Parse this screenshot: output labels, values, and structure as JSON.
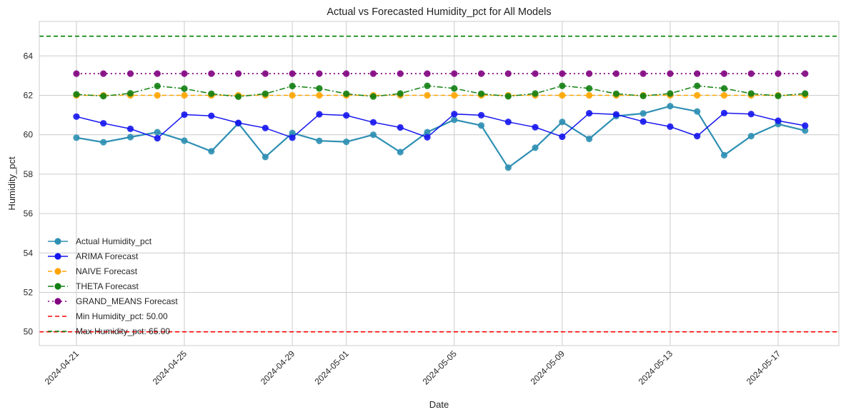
{
  "chart_data": {
    "type": "line",
    "title": "Actual vs Forecasted Humidity_pct for All Models",
    "xlabel": "Date",
    "ylabel": "Humidity_pct",
    "ylim": [
      49.3,
      65.75
    ],
    "xlim": [
      "2024-04-19 15:00",
      "2024-05-19 06:00"
    ],
    "yticks": [
      50,
      52,
      54,
      56,
      58,
      60,
      62,
      64
    ],
    "xticks": [
      "2024-04-21",
      "2024-04-25",
      "2024-04-29",
      "2024-05-01",
      "2024-05-05",
      "2024-05-09",
      "2024-05-13",
      "2024-05-17"
    ],
    "grid": true,
    "legend_position": "lower-left",
    "x": [
      "2024-04-21",
      "2024-04-22",
      "2024-04-23",
      "2024-04-24",
      "2024-04-25",
      "2024-04-26",
      "2024-04-27",
      "2024-04-28",
      "2024-04-29",
      "2024-04-30",
      "2024-05-01",
      "2024-05-02",
      "2024-05-03",
      "2024-05-04",
      "2024-05-05",
      "2024-05-06",
      "2024-05-07",
      "2024-05-08",
      "2024-05-09",
      "2024-05-10",
      "2024-05-11",
      "2024-05-12",
      "2024-05-13",
      "2024-05-14",
      "2024-05-15",
      "2024-05-16",
      "2024-05-17",
      "2024-05-18"
    ],
    "series": [
      {
        "name": "Actual Humidity_pct",
        "color": "#2e8fb3",
        "style": "solid",
        "width": 2.2,
        "values": [
          59.85,
          59.62,
          59.88,
          60.13,
          59.7,
          59.16,
          60.58,
          58.87,
          60.09,
          59.69,
          59.64,
          60.0,
          59.12,
          60.13,
          60.76,
          60.47,
          58.33,
          59.34,
          60.65,
          59.79,
          60.95,
          61.08,
          61.45,
          61.18,
          58.96,
          59.93,
          60.54,
          60.21
        ]
      },
      {
        "name": "ARIMA Forecast",
        "color": "#1515ee",
        "style": "solid",
        "width": 1.5,
        "values": [
          60.92,
          60.58,
          60.3,
          59.82,
          61.02,
          60.96,
          60.6,
          60.34,
          59.85,
          61.04,
          60.98,
          60.63,
          60.37,
          59.87,
          61.05,
          60.99,
          60.65,
          60.38,
          59.9,
          61.09,
          61.03,
          60.67,
          60.41,
          59.93,
          61.1,
          61.05,
          60.71,
          60.46
        ]
      },
      {
        "name": "NAIVE Forecast",
        "color": "#ffa500",
        "style": "dashed",
        "width": 1.5,
        "values": [
          62.0,
          62.0,
          62.0,
          62.0,
          62.0,
          62.0,
          62.0,
          62.0,
          62.0,
          62.0,
          62.0,
          62.0,
          62.0,
          62.0,
          62.0,
          62.0,
          62.0,
          62.0,
          62.0,
          62.0,
          62.0,
          62.0,
          62.0,
          62.0,
          62.0,
          62.0,
          62.0,
          62.0
        ]
      },
      {
        "name": "THETA Forecast",
        "color": "#128012",
        "style": "dashdot",
        "width": 1.5,
        "values": [
          62.05,
          61.96,
          62.1,
          62.47,
          62.34,
          62.08,
          61.93,
          62.08,
          62.47,
          62.35,
          62.08,
          61.94,
          62.09,
          62.48,
          62.35,
          62.08,
          61.95,
          62.09,
          62.48,
          62.35,
          62.08,
          61.97,
          62.09,
          62.48,
          62.35,
          62.09,
          61.97,
          62.09
        ]
      },
      {
        "name": "GRAND_MEANS Forecast",
        "color": "#800080",
        "style": "dotted",
        "width": 1.8,
        "values": [
          63.1,
          63.1,
          63.1,
          63.1,
          63.1,
          63.1,
          63.1,
          63.1,
          63.1,
          63.1,
          63.1,
          63.1,
          63.1,
          63.1,
          63.1,
          63.1,
          63.1,
          63.1,
          63.1,
          63.1,
          63.1,
          63.1,
          63.1,
          63.1,
          63.1,
          63.1,
          63.1,
          63.1
        ]
      }
    ],
    "hlines": [
      {
        "name": "Min Humidity_pct: 50.00",
        "value": 50,
        "color": "#ff0000",
        "style": "dashed"
      },
      {
        "name": "Max Humidity_pct: 65.00",
        "value": 65,
        "color": "#008000",
        "style": "dashed"
      }
    ]
  }
}
